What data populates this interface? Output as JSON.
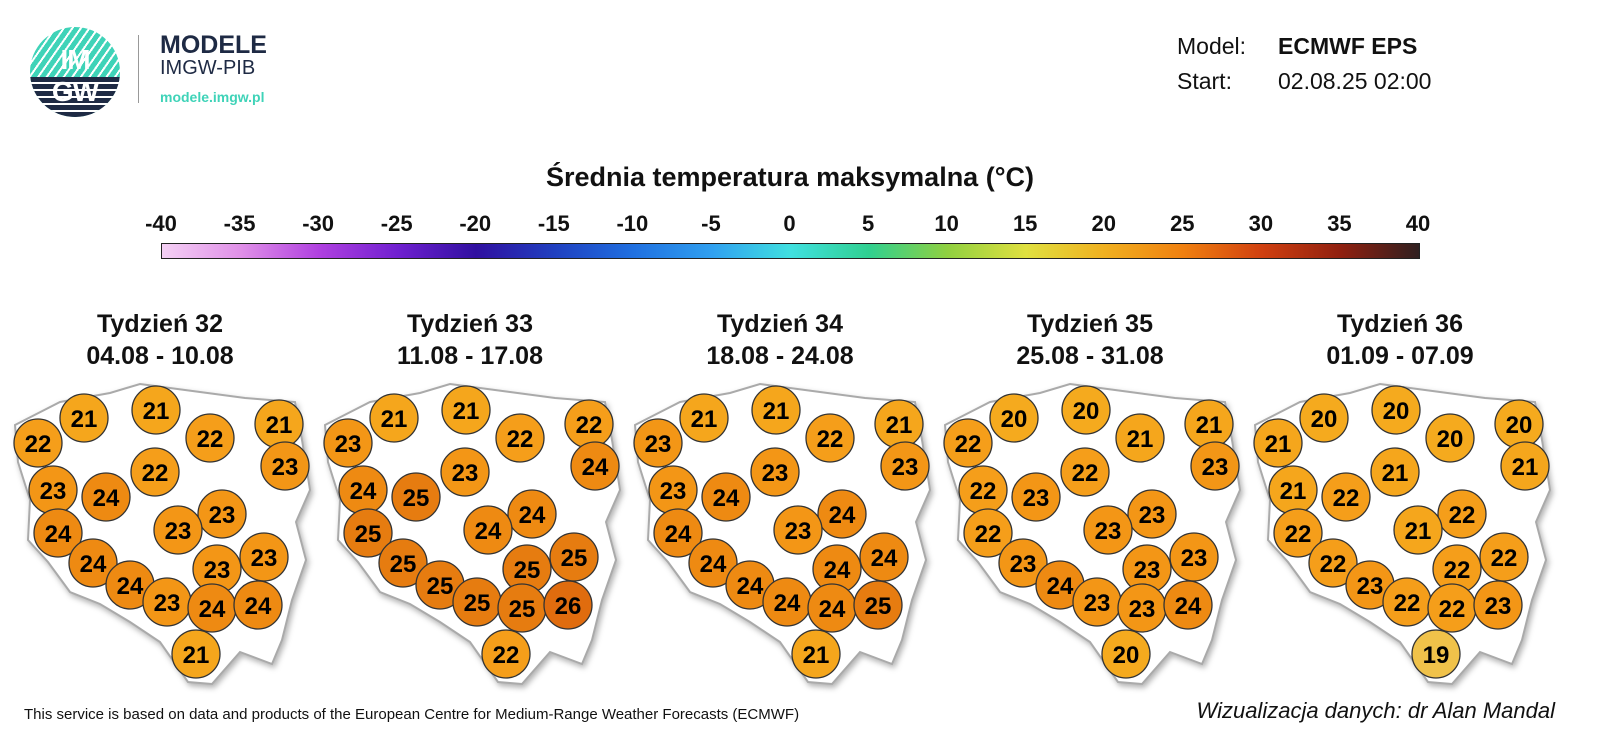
{
  "logo": {
    "circle_text_top": "IM",
    "circle_text_bottom": "GW",
    "title": "MODELE",
    "subtitle": "IMGW-PIB",
    "url": "modele.imgw.pl",
    "colors": {
      "teal": "#3fd3b8",
      "navy": "#1e2a44"
    }
  },
  "meta": {
    "model_label": "Model:",
    "model_value": "ECMWF EPS",
    "start_label": "Start:",
    "start_value": "02.08.25 02:00"
  },
  "title": "Średnia temperatura maksymalna (°C)",
  "colorbar": {
    "ticks": [
      "-40",
      "-35",
      "-30",
      "-25",
      "-20",
      "-15",
      "-10",
      "-5",
      "0",
      "5",
      "10",
      "15",
      "20",
      "25",
      "30",
      "35",
      "40"
    ],
    "colors": [
      "#f4d0f4",
      "#e090e8",
      "#b040e0",
      "#7020d0",
      "#3010a0",
      "#2040c0",
      "#2070e0",
      "#30a0f0",
      "#40e0e0",
      "#30d090",
      "#90d040",
      "#e0e040",
      "#f0b020",
      "#f08010",
      "#d04010",
      "#902010",
      "#302020"
    ]
  },
  "weeks": [
    {
      "name": "Tydzień 32",
      "dates": "04.08 - 10.08",
      "values": [
        21,
        21,
        22,
        21,
        22,
        22,
        23,
        23,
        24,
        23,
        23,
        24,
        24,
        24,
        23,
        23,
        23,
        24,
        24,
        21
      ]
    },
    {
      "name": "Tydzień 33",
      "dates": "11.08 - 17.08",
      "values": [
        21,
        21,
        22,
        22,
        23,
        23,
        24,
        24,
        25,
        24,
        24,
        25,
        25,
        25,
        25,
        25,
        25,
        25,
        26,
        22
      ]
    },
    {
      "name": "Tydzień 34",
      "dates": "18.08 - 24.08",
      "values": [
        21,
        21,
        22,
        21,
        23,
        23,
        23,
        23,
        24,
        24,
        23,
        24,
        24,
        24,
        24,
        24,
        24,
        24,
        25,
        21
      ]
    },
    {
      "name": "Tydzień 35",
      "dates": "25.08 - 31.08",
      "values": [
        20,
        20,
        21,
        21,
        22,
        22,
        23,
        22,
        23,
        23,
        23,
        22,
        23,
        24,
        23,
        23,
        23,
        23,
        24,
        20
      ]
    },
    {
      "name": "Tydzień 36",
      "dates": "01.09 - 07.09",
      "values": [
        20,
        20,
        20,
        20,
        21,
        21,
        21,
        21,
        22,
        22,
        21,
        22,
        22,
        23,
        22,
        22,
        22,
        22,
        23,
        19
      ]
    }
  ],
  "footer": "This service is based on data and products of the European Centre for Medium-Range Weather Forecasts (ECMWF)",
  "credit": "Wizualizacja danych: dr Alan Mandal"
}
